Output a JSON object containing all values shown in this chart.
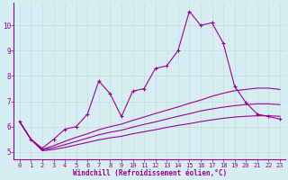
{
  "xlabel": "Windchill (Refroidissement éolien,°C)",
  "background_color": "#d6eef2",
  "grid_color": "#b8d8e0",
  "line_color": "#990099",
  "xlim": [
    -0.5,
    23.5
  ],
  "ylim": [
    4.7,
    10.9
  ],
  "xticks": [
    0,
    1,
    2,
    3,
    4,
    5,
    6,
    7,
    8,
    9,
    10,
    11,
    12,
    13,
    14,
    15,
    16,
    17,
    18,
    19,
    20,
    21,
    22,
    23
  ],
  "yticks": [
    5,
    6,
    7,
    8,
    9,
    10
  ],
  "series1_x": [
    0,
    1,
    2,
    3,
    4,
    5,
    6,
    7,
    8,
    9,
    10,
    11,
    12,
    13,
    14,
    15,
    16,
    17,
    18,
    19,
    20,
    21,
    22,
    23
  ],
  "series1_y": [
    6.2,
    5.5,
    5.15,
    5.5,
    5.9,
    6.0,
    6.5,
    7.8,
    7.3,
    6.4,
    7.4,
    7.5,
    8.3,
    8.4,
    9.0,
    10.55,
    10.0,
    10.1,
    9.3,
    7.6,
    6.95,
    6.5,
    6.4,
    6.3
  ],
  "series2_x": [
    0,
    1,
    2,
    3,
    4,
    5,
    6,
    7,
    8,
    9,
    10,
    11,
    12,
    13,
    14,
    15,
    16,
    17,
    18,
    19,
    20,
    21,
    22,
    23
  ],
  "series2_y": [
    6.2,
    5.5,
    5.1,
    5.25,
    5.42,
    5.58,
    5.72,
    5.88,
    6.0,
    6.1,
    6.25,
    6.38,
    6.52,
    6.65,
    6.78,
    6.92,
    7.05,
    7.2,
    7.32,
    7.42,
    7.47,
    7.52,
    7.52,
    7.47
  ],
  "series3_x": [
    0,
    1,
    2,
    3,
    4,
    5,
    6,
    7,
    8,
    9,
    10,
    11,
    12,
    13,
    14,
    15,
    16,
    17,
    18,
    19,
    20,
    21,
    22,
    23
  ],
  "series3_y": [
    6.2,
    5.5,
    5.05,
    5.1,
    5.18,
    5.28,
    5.38,
    5.48,
    5.56,
    5.62,
    5.72,
    5.8,
    5.88,
    5.97,
    6.05,
    6.12,
    6.2,
    6.27,
    6.33,
    6.38,
    6.41,
    6.43,
    6.43,
    6.41
  ],
  "series4_x": [
    0,
    1,
    2,
    3,
    4,
    5,
    6,
    7,
    8,
    9,
    10,
    11,
    12,
    13,
    14,
    15,
    16,
    17,
    18,
    19,
    20,
    21,
    22,
    23
  ],
  "series4_y": [
    6.2,
    5.5,
    5.08,
    5.17,
    5.29,
    5.42,
    5.55,
    5.68,
    5.78,
    5.86,
    5.98,
    6.09,
    6.19,
    6.3,
    6.41,
    6.51,
    6.62,
    6.7,
    6.77,
    6.83,
    6.87,
    6.9,
    6.9,
    6.87
  ],
  "marker": "+",
  "markersize": 3,
  "linewidth": 0.8
}
